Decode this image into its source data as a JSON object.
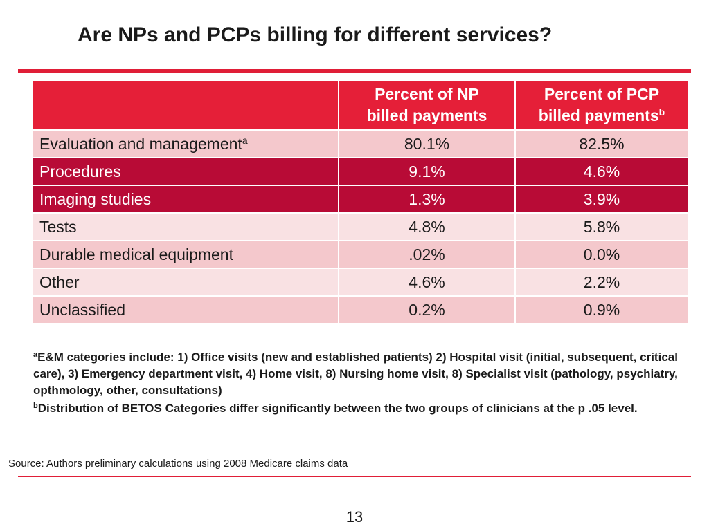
{
  "title": "Are NPs and PCPs billing for different services?",
  "table": {
    "headers": {
      "col1": "",
      "col2_line1": "Percent of NP",
      "col2_line2": "billed payments",
      "col3_line1": "Percent of PCP",
      "col3_line2": "billed payments",
      "col3_sup": "b"
    },
    "rows": [
      {
        "label": "Evaluation and management",
        "sup": "a",
        "np": "80.1%",
        "pcp": "82.5%"
      },
      {
        "label": "Procedures",
        "sup": "",
        "np": "9.1%",
        "pcp": "4.6%"
      },
      {
        "label": "Imaging studies",
        "sup": "",
        "np": "1.3%",
        "pcp": "3.9%"
      },
      {
        "label": "Tests",
        "sup": "",
        "np": "4.8%",
        "pcp": "5.8%"
      },
      {
        "label": "Durable medical equipment",
        "sup": "",
        "np": ".02%",
        "pcp": "0.0%"
      },
      {
        "label": "Other",
        "sup": "",
        "np": "4.6%",
        "pcp": "2.2%"
      },
      {
        "label": "Unclassified",
        "sup": "",
        "np": "0.2%",
        "pcp": "0.9%"
      }
    ]
  },
  "footnotes": {
    "a_marker": "a",
    "a_text": "E&M categories include: 1) Office visits (new and established patients) 2) Hospital visit (initial, subsequent, critical care), 3) Emergency department visit, 4) Home visit, 8) Nursing home visit, 8) Specialist visit (pathology, psychiatry, opthmology, other, consultations)",
    "b_marker": "b",
    "b_text": "Distribution of BETOS Categories differ significantly between the two groups of clinicians at the p .05 level."
  },
  "source": "Source: Authors preliminary calculations using 2008 Medicare claims data",
  "page_number": "13",
  "colors": {
    "accent": "#e01e37",
    "header_bg": "#e51f38",
    "dark_row": "#b80b36",
    "light_row": "#f4c8cc",
    "lighter_row": "#f9e1e3"
  }
}
